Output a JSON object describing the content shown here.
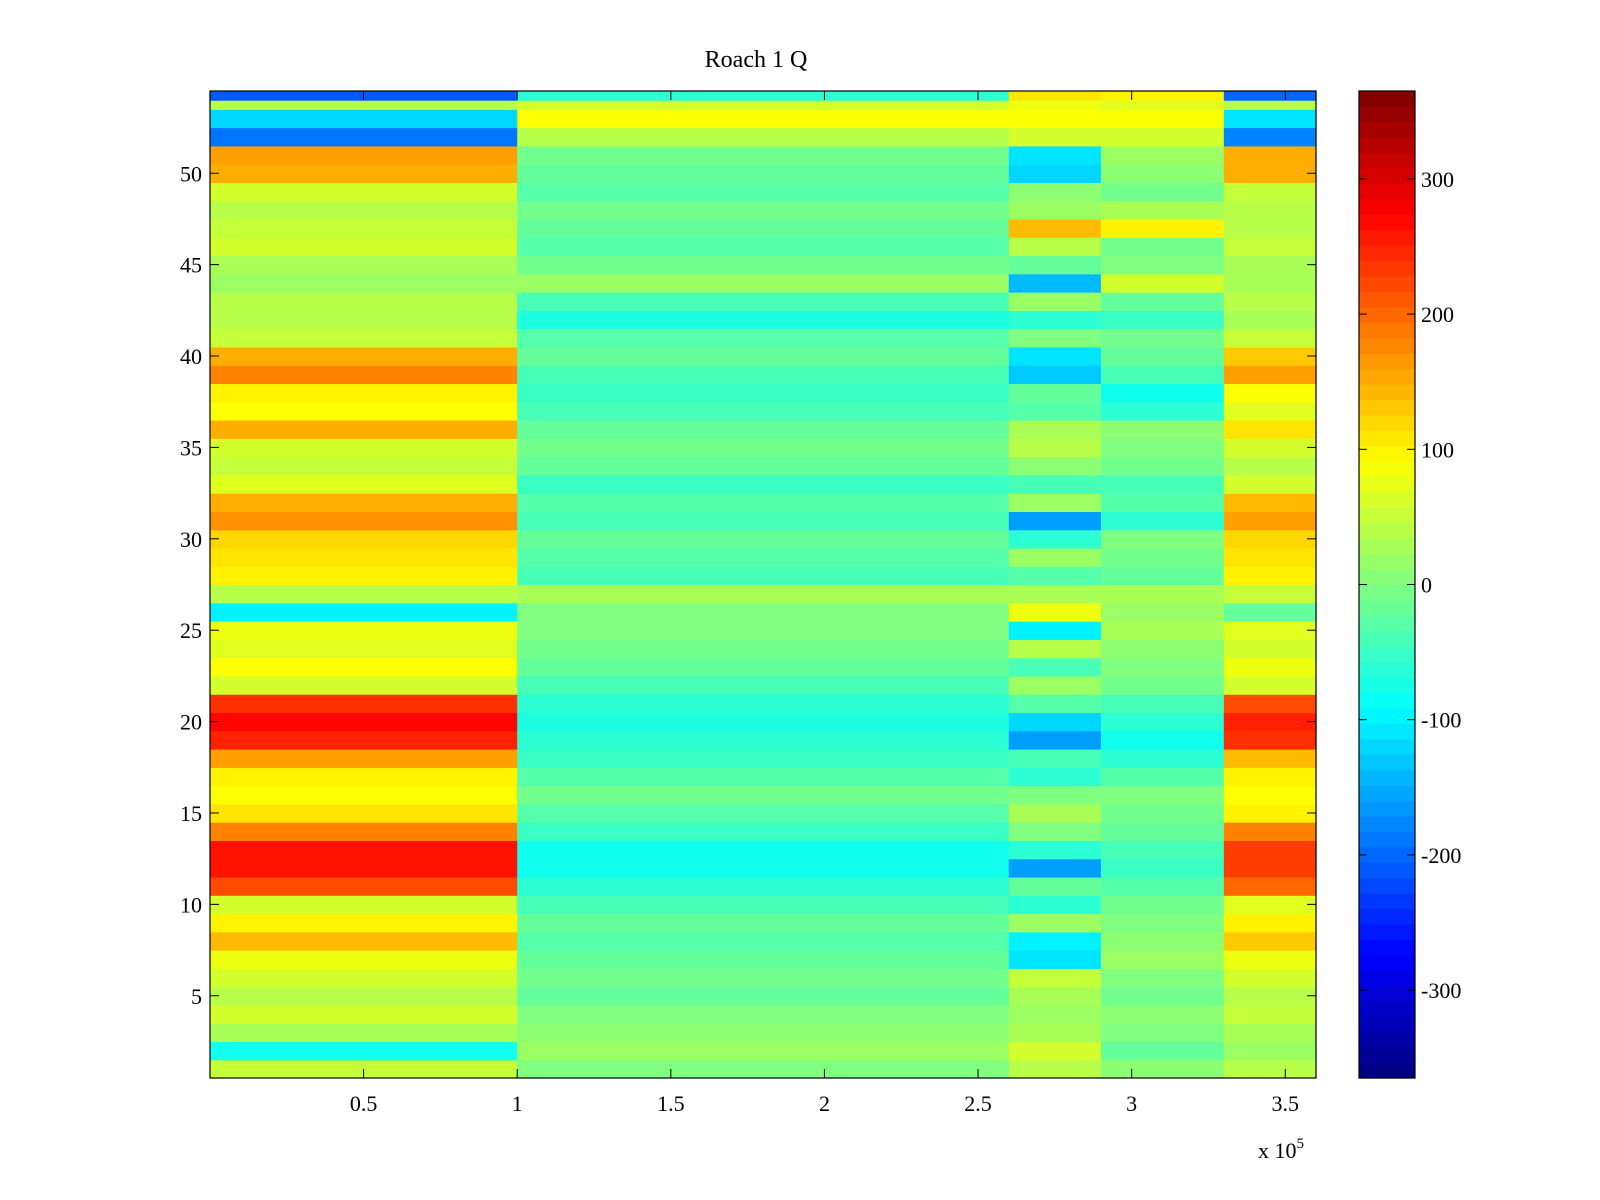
{
  "chart_data": {
    "type": "heatmap",
    "title": "Roach 1 Q",
    "xlabel": "",
    "ylabel": "",
    "x_multiplier_label": "x 10",
    "x_multiplier_exponent": "5",
    "xlim": [
      0,
      3.6
    ],
    "ylim": [
      0.5,
      54.5
    ],
    "x_ticks": [
      0.5,
      1,
      1.5,
      2,
      2.5,
      3,
      3.5
    ],
    "x_tick_labels": [
      "0.5",
      "1",
      "1.5",
      "2",
      "2.5",
      "3",
      "3.5"
    ],
    "y_ticks": [
      5,
      10,
      15,
      20,
      25,
      30,
      35,
      40,
      45,
      50
    ],
    "y_tick_labels": [
      "5",
      "10",
      "15",
      "20",
      "25",
      "30",
      "35",
      "40",
      "45",
      "50"
    ],
    "colorbar": {
      "colormap": "jet",
      "clim": [
        -365,
        365
      ],
      "ticks": [
        -300,
        -200,
        -100,
        0,
        100,
        200,
        300
      ],
      "tick_labels": [
        "-300",
        "-200",
        "-100",
        "0",
        "100",
        "200",
        "300"
      ]
    },
    "x_segments": [
      0,
      1.0,
      2.6,
      2.9,
      3.3,
      3.6
    ],
    "rows": [
      {
        "y": 1,
        "values": [
          50,
          0,
          40,
          10,
          40
        ]
      },
      {
        "y": 2,
        "values": [
          -80,
          20,
          60,
          -20,
          20
        ]
      },
      {
        "y": 3,
        "values": [
          30,
          10,
          30,
          0,
          30
        ]
      },
      {
        "y": 4,
        "values": [
          60,
          0,
          20,
          10,
          50
        ]
      },
      {
        "y": 5,
        "values": [
          40,
          -20,
          30,
          -10,
          40
        ]
      },
      {
        "y": 6,
        "values": [
          60,
          -10,
          50,
          0,
          60
        ]
      },
      {
        "y": 7,
        "values": [
          80,
          -20,
          -110,
          20,
          80
        ]
      },
      {
        "y": 8,
        "values": [
          140,
          -30,
          -100,
          10,
          130
        ]
      },
      {
        "y": 9,
        "values": [
          100,
          -20,
          20,
          0,
          100
        ]
      },
      {
        "y": 10,
        "values": [
          60,
          -40,
          -60,
          -10,
          70
        ]
      },
      {
        "y": 11,
        "values": [
          220,
          -60,
          -20,
          -30,
          200
        ]
      },
      {
        "y": 12,
        "values": [
          260,
          -80,
          -160,
          -50,
          230
        ]
      },
      {
        "y": 13,
        "values": [
          260,
          -80,
          -60,
          -40,
          230
        ]
      },
      {
        "y": 14,
        "values": [
          180,
          -50,
          0,
          -20,
          180
        ]
      },
      {
        "y": 15,
        "values": [
          110,
          -30,
          30,
          -10,
          100
        ]
      },
      {
        "y": 16,
        "values": [
          90,
          -10,
          0,
          0,
          90
        ]
      },
      {
        "y": 17,
        "values": [
          100,
          -30,
          -60,
          -30,
          100
        ]
      },
      {
        "y": 18,
        "values": [
          160,
          -50,
          -40,
          -60,
          140
        ]
      },
      {
        "y": 19,
        "values": [
          250,
          -60,
          -160,
          -80,
          240
        ]
      },
      {
        "y": 20,
        "values": [
          270,
          -70,
          -120,
          -60,
          250
        ]
      },
      {
        "y": 21,
        "values": [
          240,
          -60,
          -30,
          -40,
          220
        ]
      },
      {
        "y": 22,
        "values": [
          60,
          -40,
          20,
          -10,
          60
        ]
      },
      {
        "y": 23,
        "values": [
          90,
          -20,
          -40,
          0,
          80
        ]
      },
      {
        "y": 24,
        "values": [
          70,
          -10,
          40,
          10,
          60
        ]
      },
      {
        "y": 25,
        "values": [
          80,
          0,
          -100,
          30,
          70
        ]
      },
      {
        "y": 26,
        "values": [
          -100,
          0,
          80,
          20,
          -20
        ]
      },
      {
        "y": 27,
        "values": [
          40,
          30,
          30,
          30,
          50
        ]
      },
      {
        "y": 28,
        "values": [
          100,
          -40,
          -30,
          -20,
          100
        ]
      },
      {
        "y": 29,
        "values": [
          110,
          -30,
          20,
          -10,
          110
        ]
      },
      {
        "y": 30,
        "values": [
          120,
          -20,
          -60,
          0,
          120
        ]
      },
      {
        "y": 31,
        "values": [
          170,
          -40,
          -160,
          -60,
          160
        ]
      },
      {
        "y": 32,
        "values": [
          150,
          -30,
          20,
          -30,
          140
        ]
      },
      {
        "y": 33,
        "values": [
          70,
          -50,
          -40,
          -40,
          60
        ]
      },
      {
        "y": 34,
        "values": [
          50,
          -20,
          10,
          -10,
          40
        ]
      },
      {
        "y": 35,
        "values": [
          60,
          -10,
          40,
          0,
          60
        ]
      },
      {
        "y": 36,
        "values": [
          150,
          -20,
          30,
          10,
          110
        ]
      },
      {
        "y": 37,
        "values": [
          90,
          -40,
          -30,
          -60,
          70
        ]
      },
      {
        "y": 38,
        "values": [
          100,
          -50,
          -20,
          -80,
          90
        ]
      },
      {
        "y": 39,
        "values": [
          180,
          -40,
          -130,
          -40,
          160
        ]
      },
      {
        "y": 40,
        "values": [
          150,
          -20,
          -110,
          -20,
          130
        ]
      },
      {
        "y": 41,
        "values": [
          50,
          -30,
          0,
          -10,
          50
        ]
      },
      {
        "y": 42,
        "values": [
          40,
          -70,
          -60,
          -50,
          30
        ]
      },
      {
        "y": 43,
        "values": [
          40,
          -40,
          20,
          -20,
          40
        ]
      },
      {
        "y": 44,
        "values": [
          20,
          20,
          -140,
          60,
          30
        ]
      },
      {
        "y": 45,
        "values": [
          30,
          -10,
          -20,
          0,
          30
        ]
      },
      {
        "y": 46,
        "values": [
          60,
          -30,
          40,
          -10,
          50
        ]
      },
      {
        "y": 47,
        "values": [
          50,
          -20,
          140,
          100,
          40
        ]
      },
      {
        "y": 48,
        "values": [
          40,
          -10,
          20,
          30,
          40
        ]
      },
      {
        "y": 49,
        "values": [
          60,
          -30,
          10,
          -10,
          50
        ]
      },
      {
        "y": 50,
        "values": [
          150,
          -20,
          -120,
          10,
          150
        ]
      },
      {
        "y": 51,
        "values": [
          160,
          -10,
          -110,
          20,
          150
        ]
      },
      {
        "y": 52,
        "values": [
          -190,
          40,
          60,
          60,
          -180
        ]
      },
      {
        "y": 53,
        "values": [
          -120,
          90,
          90,
          90,
          -110
        ]
      },
      {
        "y": 54,
        "values": [
          40,
          60,
          80,
          70,
          40
        ]
      },
      {
        "y": 54.5,
        "values": [
          -210,
          -60,
          110,
          100,
          -200
        ]
      }
    ]
  }
}
